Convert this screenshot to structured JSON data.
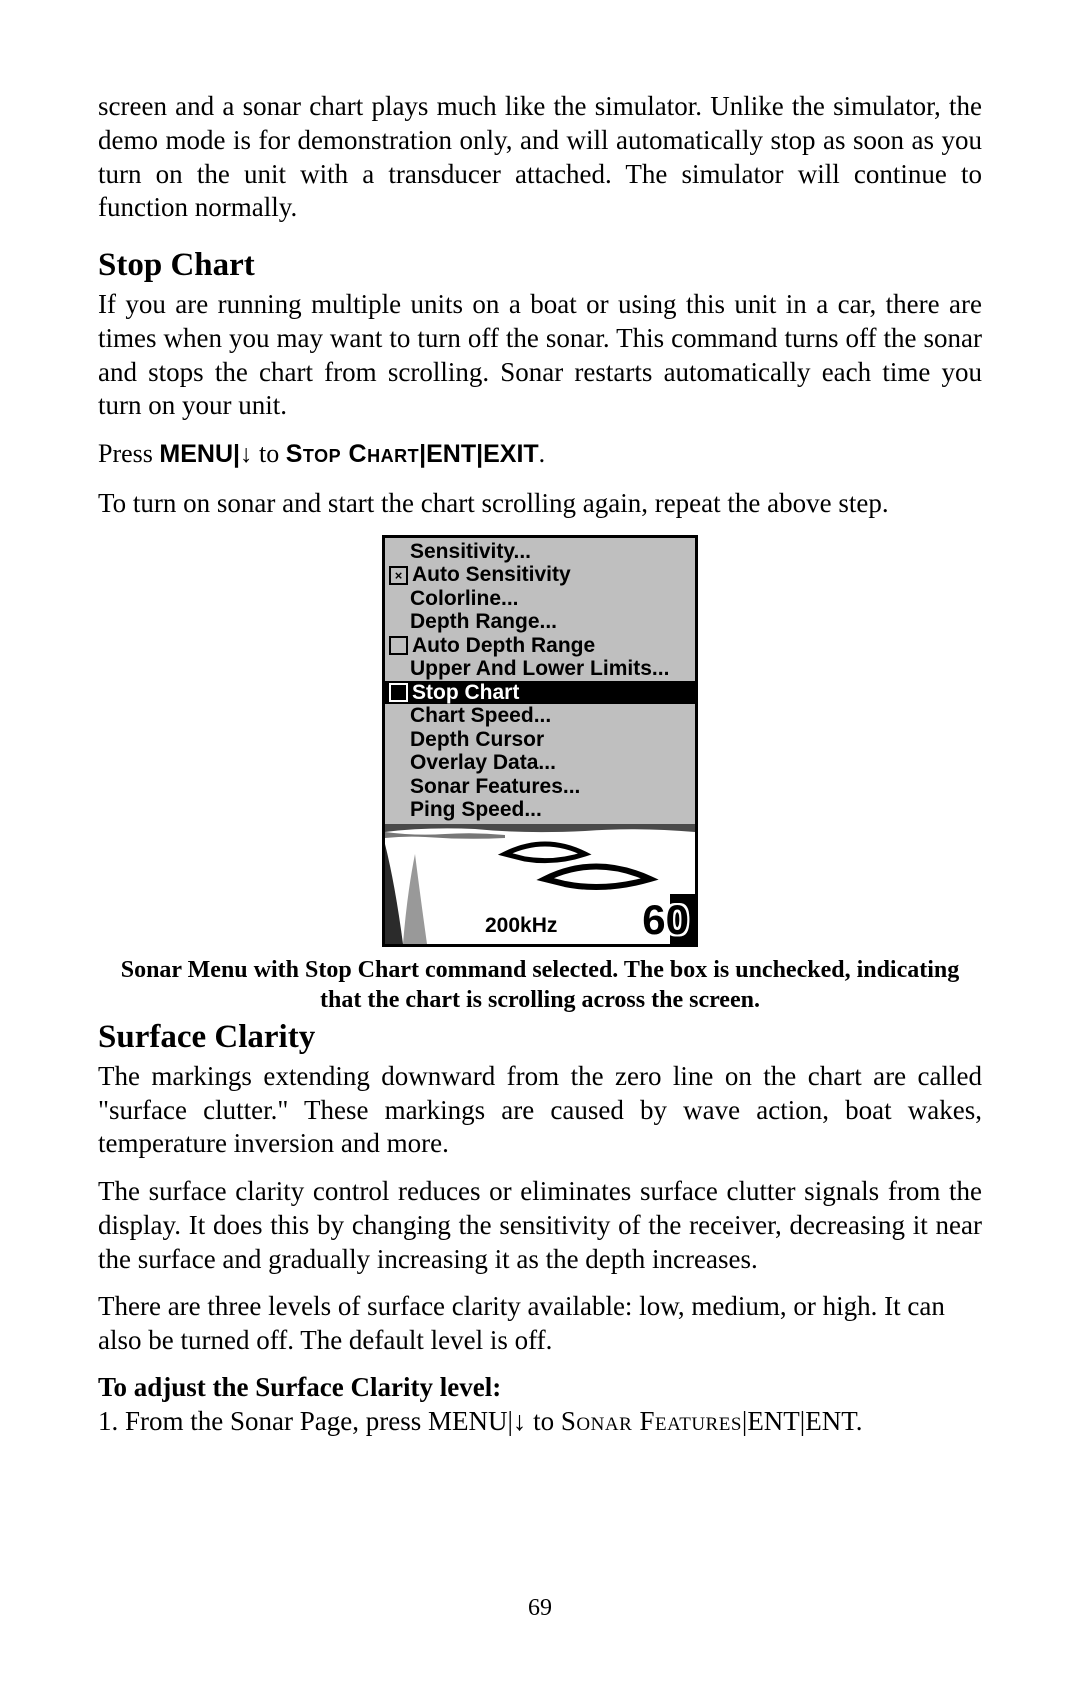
{
  "intro_para": "screen and a sonar chart plays much like the simulator. Unlike the simulator, the demo mode is for demonstration only, and will automatically stop as soon as you turn on the unit with a transducer attached. The simulator will continue to function normally.",
  "stop_chart": {
    "heading": "Stop Chart",
    "para1": "If you are running multiple units on a boat or using this unit in a car, there are times when you may want to turn off the sonar. This command turns off the sonar and stops the chart from scrolling. Sonar restarts automatically each time you turn on your unit.",
    "instr_prefix": "Press ",
    "instr_menu": "MENU",
    "instr_sep": "|",
    "instr_arrow": "↓",
    "instr_to": " to ",
    "instr_stopchart": "Stop Chart",
    "instr_ent": "ENT",
    "instr_exit": "EXIT",
    "instr_period": ".",
    "para2": "To turn on sonar and start the chart scrolling again, repeat the above step."
  },
  "menu": {
    "items": [
      {
        "label": "Sensitivity...",
        "checkbox": false,
        "checked": false,
        "selected": false
      },
      {
        "label": "Auto Sensitivity",
        "checkbox": true,
        "checked": true,
        "selected": false
      },
      {
        "label": "Colorline...",
        "checkbox": false,
        "checked": false,
        "selected": false
      },
      {
        "label": "Depth Range...",
        "checkbox": false,
        "checked": false,
        "selected": false
      },
      {
        "label": "Auto Depth Range",
        "checkbox": true,
        "checked": false,
        "selected": false
      },
      {
        "label": "Upper And Lower Limits...",
        "checkbox": false,
        "checked": false,
        "selected": false
      },
      {
        "label": "Stop Chart",
        "checkbox": true,
        "checked": false,
        "selected": true
      },
      {
        "label": "Chart Speed...",
        "checkbox": false,
        "checked": false,
        "selected": false
      },
      {
        "label": "Depth Cursor",
        "checkbox": false,
        "checked": false,
        "selected": false
      },
      {
        "label": "Overlay Data...",
        "checkbox": false,
        "checked": false,
        "selected": false
      },
      {
        "label": "Sonar Features...",
        "checkbox": false,
        "checked": false,
        "selected": false
      },
      {
        "label": "Ping Speed...",
        "checkbox": false,
        "checked": false,
        "selected": false
      }
    ],
    "freq_label": "200kHz",
    "depth_value": "60"
  },
  "figure_caption": "Sonar Menu with Stop Chart command selected. The box is unchecked, indicating that the chart is scrolling across the screen.",
  "surface_clarity": {
    "heading": "Surface Clarity",
    "para1": "The markings extending downward from the zero line on the chart are called \"surface clutter.\" These markings are caused by wave action, boat wakes, temperature inversion and more.",
    "para2": "The surface clarity control reduces or eliminates surface clutter signals from the display. It does this by changing the sensitivity of the receiver, decreasing it near the surface and gradually increasing it as the depth increases.",
    "para3": "There are three levels of surface clarity available: low, medium, or high. It can also be turned off. The default level is off.",
    "adjust_heading": "To adjust the Surface Clarity level:",
    "step1_prefix": "1. From the Sonar Page, press ",
    "step1_menu": "MENU",
    "step1_sonarfeat": "Sonar Features",
    "step1_ent": "ENT"
  },
  "page_number": "69"
}
